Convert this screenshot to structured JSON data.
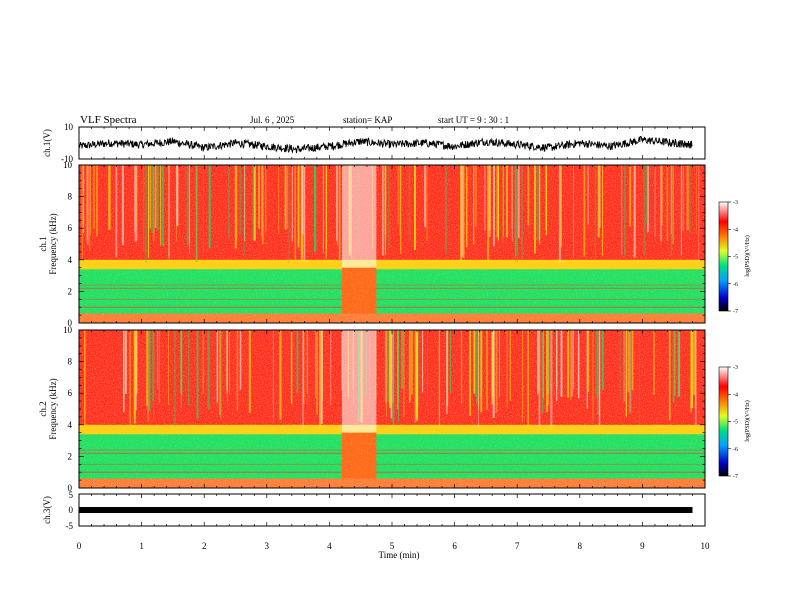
{
  "header": {
    "title": "VLF Spectra",
    "date": "Jul. 6 , 2025",
    "station": "station= KAP",
    "start": "start UT = 9 : 30 : 1"
  },
  "chart_data": [
    {
      "type": "line",
      "name": "ch1-waveform",
      "ylabel": "ch.1(V)",
      "ylim": [
        -10,
        10
      ],
      "yticks": [
        "10",
        "-10"
      ],
      "x": [
        0,
        0.5,
        1,
        1.5,
        2,
        2.5,
        3,
        3.5,
        4,
        4.5,
        5,
        5.5,
        6,
        6.5,
        7,
        7.5,
        8,
        8.5,
        9,
        9.5,
        9.8
      ],
      "values": [
        -2,
        0,
        -1,
        1,
        -3,
        0,
        -2,
        -4,
        -2,
        1,
        -1,
        0,
        -2,
        1,
        -1,
        -3,
        0,
        -2,
        2,
        0,
        -1
      ]
    },
    {
      "type": "heatmap",
      "name": "ch1-spectrogram",
      "ylabel": [
        "ch.1",
        "Frequency (kHz)"
      ],
      "ylim": [
        0,
        10
      ],
      "yticks": [
        "0",
        "2",
        "4",
        "6",
        "8",
        "10"
      ],
      "colorbar": {
        "label": "log(PSD)(V²/Hz)",
        "min": -7,
        "max": -3,
        "ticks": [
          "-3",
          "-4",
          "-5",
          "-6",
          "-7"
        ]
      }
    },
    {
      "type": "heatmap",
      "name": "ch2-spectrogram",
      "ylabel": [
        "ch.2",
        "Frequency (kHz)"
      ],
      "ylim": [
        0,
        10
      ],
      "yticks": [
        "0",
        "2",
        "4",
        "6",
        "8",
        "10"
      ],
      "colorbar": {
        "label": "log(PSD)(V²/Hz)",
        "min": -7,
        "max": -3,
        "ticks": [
          "-3",
          "-4",
          "-5",
          "-6",
          "-7"
        ]
      }
    },
    {
      "type": "line",
      "name": "ch3-waveform",
      "ylabel": "ch.3(V)",
      "ylim": [
        -5,
        5
      ],
      "yticks": [
        "5",
        "0",
        "-5"
      ],
      "x": [
        0,
        9.8
      ],
      "values": [
        0,
        0
      ]
    }
  ],
  "xaxis": {
    "label": "Time (min)",
    "xlim": [
      0,
      10
    ],
    "ticks": [
      "0",
      "1",
      "2",
      "3",
      "4",
      "5",
      "6",
      "7",
      "8",
      "9",
      "10"
    ]
  },
  "colors": {
    "spectrum_high": "#ff2a1a",
    "spectrum_mid": "#ffe21a",
    "spectrum_low": "#22e06a",
    "trace": "#000000"
  }
}
